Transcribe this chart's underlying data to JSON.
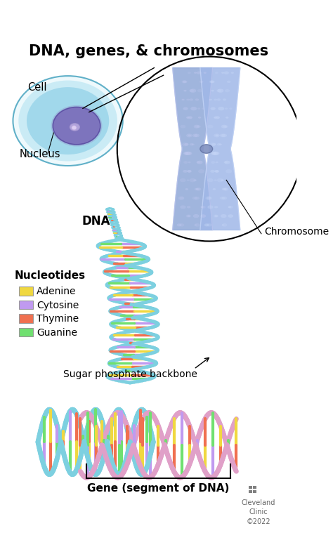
{
  "title": "DNA, genes, & chromosomes",
  "title_fontsize": 15,
  "title_fontweight": "bold",
  "background_color": "#ffffff",
  "labels": {
    "cell": "Cell",
    "nucleus": "Nucleus",
    "dna": "DNA",
    "chromosome": "Chromosome",
    "nucleotides": "Nucleotides",
    "adenine": "Adenine",
    "cytosine": "Cytosine",
    "thymine": "Thymine",
    "guanine": "Guanine",
    "sugar_backbone": "Sugar phosphate backbone",
    "gene": "Gene (segment of DNA)",
    "cleveland": "Cleveland\nClinic\n©2022"
  },
  "nucleotide_colors": {
    "adenine": "#f0d840",
    "cytosine": "#c09af0",
    "thymine": "#f07050",
    "guanine": "#70e070"
  },
  "cell_color": "#a0dce8",
  "cell_nucleus_color": "#8878c8",
  "dna_teal": "#7dd0e0",
  "dna_pink": "#e0a0c8",
  "dna_teal2": "#50c0d8",
  "figsize": [
    4.74,
    7.96
  ],
  "dpi": 100
}
